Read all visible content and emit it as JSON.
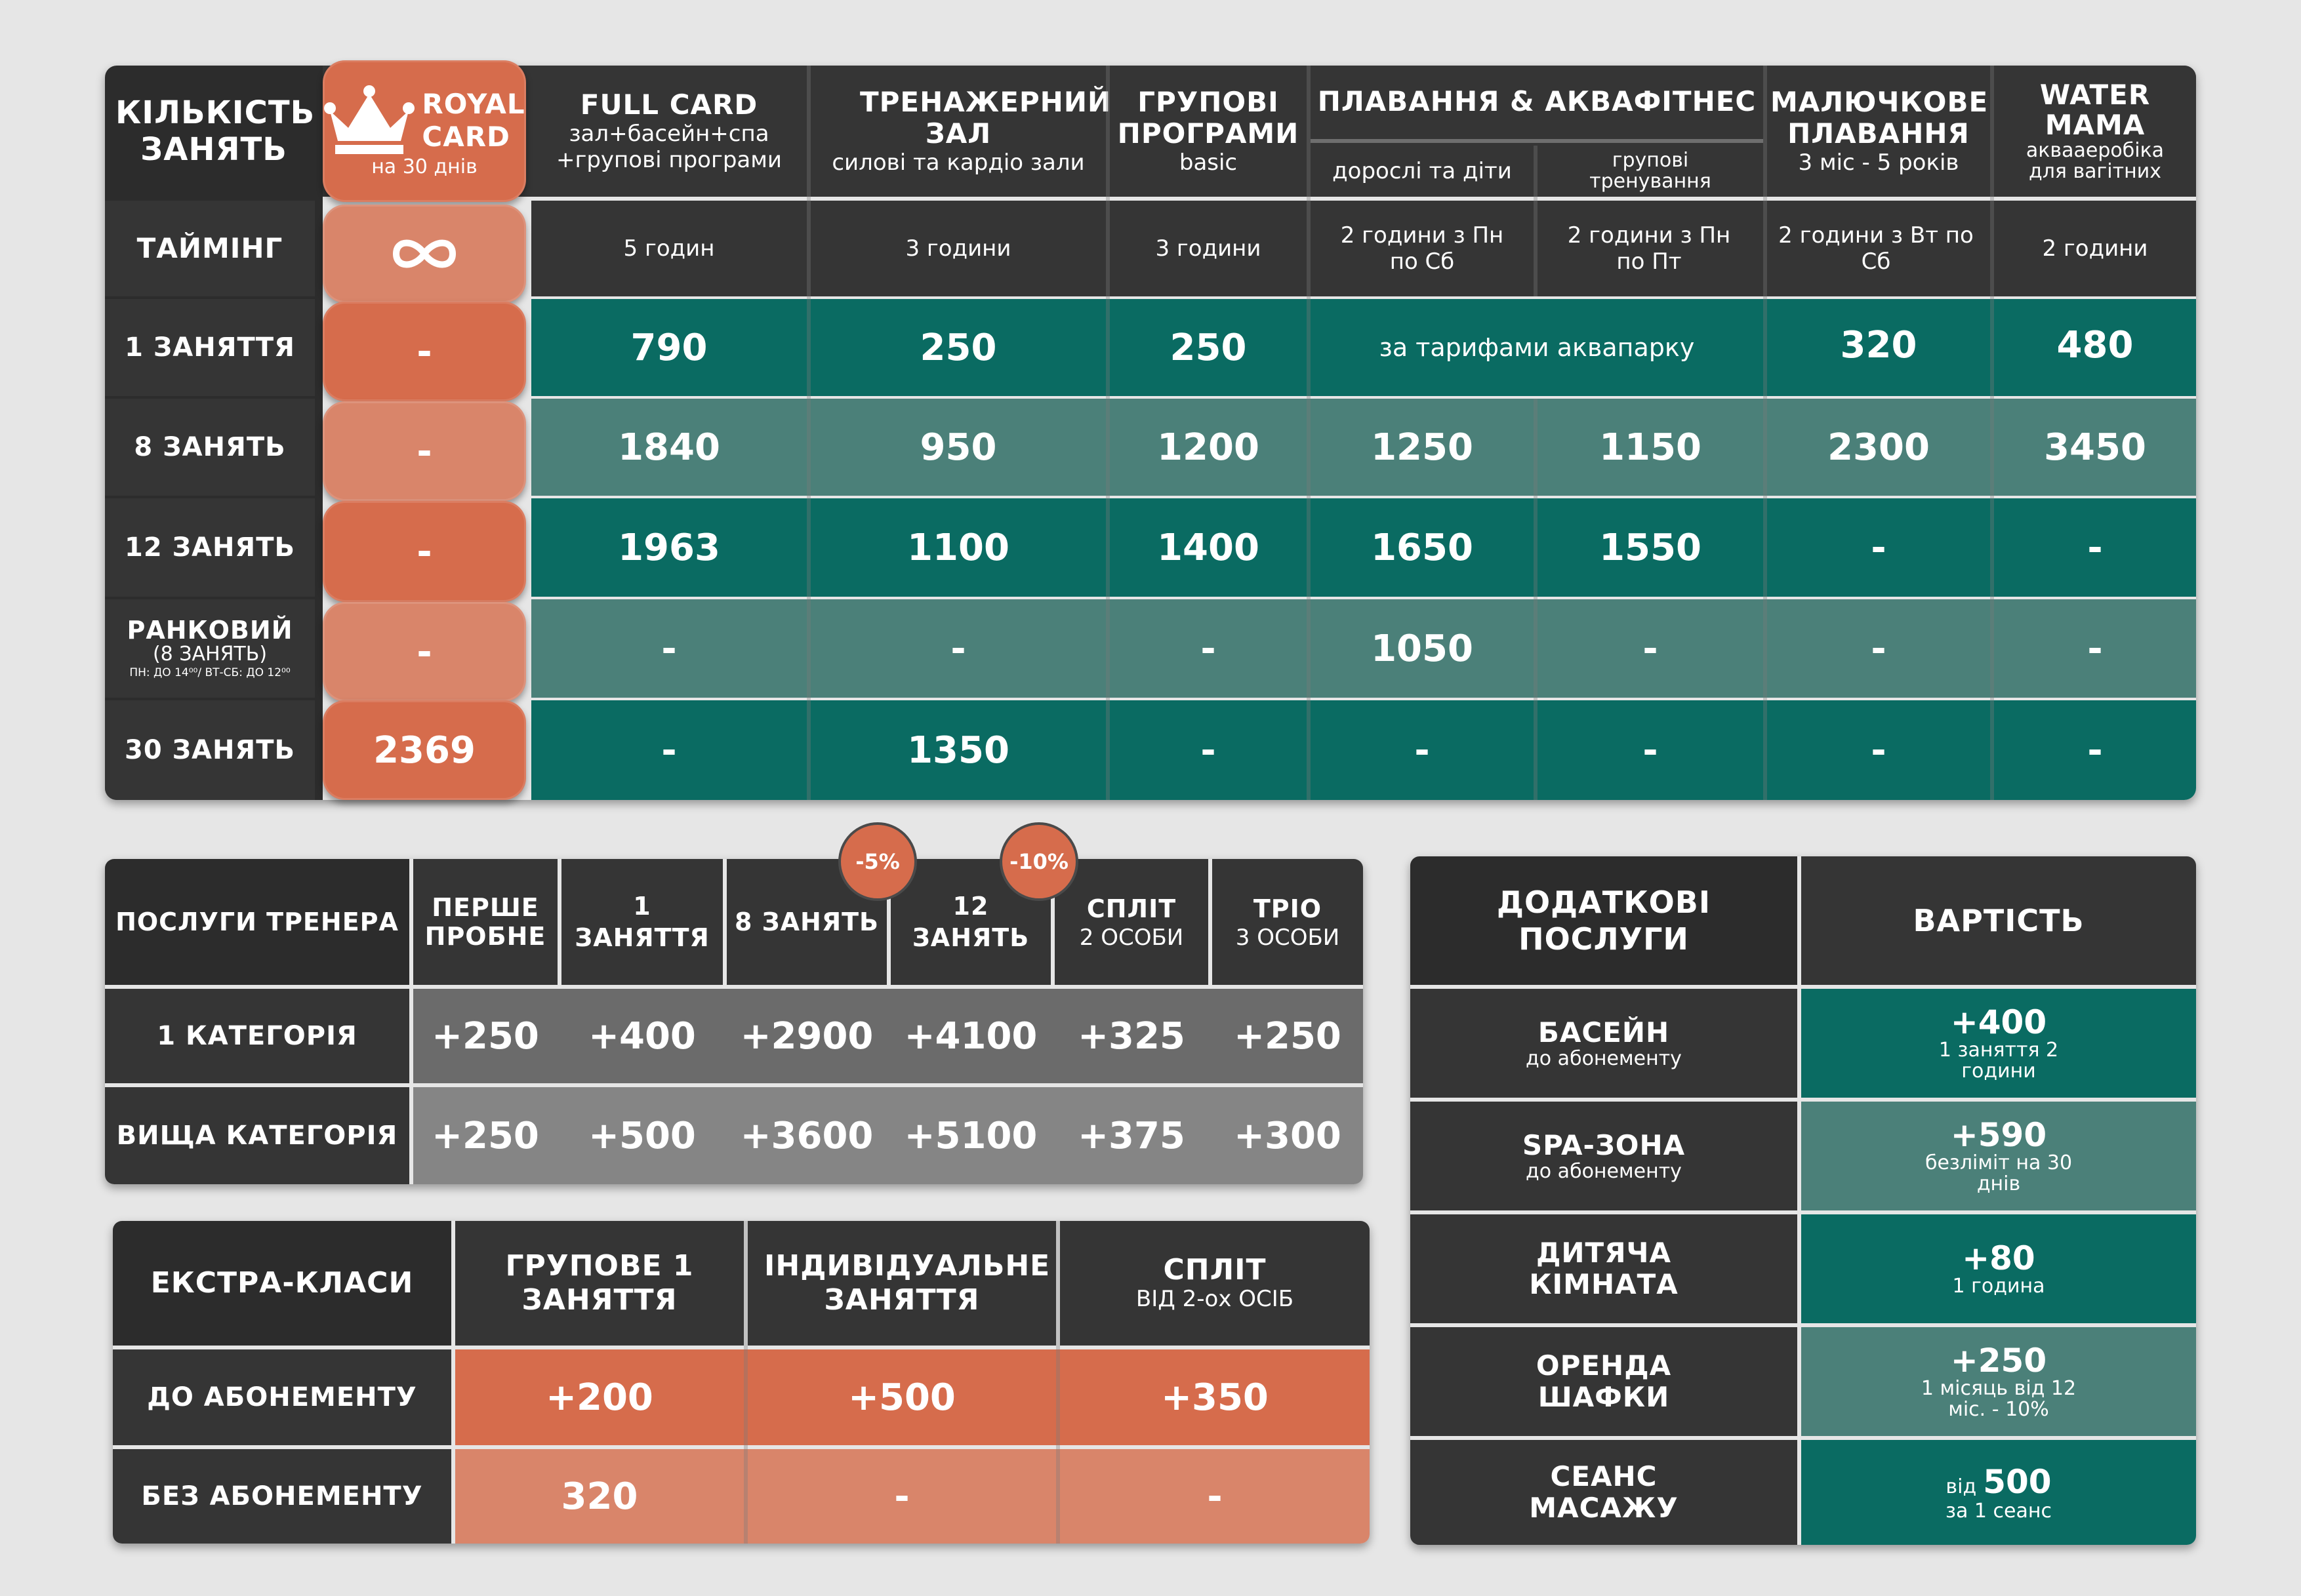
{
  "main": {
    "corner": "КІЛЬКІСТЬ ЗАНЯТЬ",
    "royal": {
      "title_line1": "ROYAL",
      "title_line2": "CARD",
      "subtitle": "на 30 днів"
    },
    "columns": [
      {
        "title": "FULL CARD",
        "sub": "зал+басейн+спа +групові програми"
      },
      {
        "title": "ТРЕНАЖЕРНИЙ ЗАЛ",
        "sub": "силові та кардіо зали"
      },
      {
        "title": "ГРУПОВІ ПРОГРАМИ",
        "sub": "basic"
      },
      {
        "title": "ПЛАВАННЯ & АКВАФІТНЕС",
        "sub_a": "дорослі та діти",
        "sub_b": "групові тренування"
      },
      {
        "title": "МАЛЮЧКОВЕ ПЛАВАННЯ",
        "sub": "3 міс - 5 років"
      },
      {
        "title": "WATER MAMA",
        "sub": "аквааеробіка для вагітних"
      }
    ],
    "timing": {
      "label": "ТАЙМІНГ",
      "royal_icon": "infinity-icon",
      "values": [
        "5 годин",
        "3 години",
        "3 години",
        "2 години з Пн по Сб",
        "2 години з Пн по Пт",
        "2 години з Вт по Сб",
        "2 години"
      ]
    },
    "rows": [
      {
        "label": "1 ЗАНЯТТЯ",
        "royal": "-",
        "values": [
          "790",
          "250",
          "250",
          "320",
          "480"
        ],
        "merged_note": "за тарифами аквапарку"
      },
      {
        "label": "8 ЗАНЯТЬ",
        "royal": "-",
        "values": [
          "1840",
          "950",
          "1200",
          "1250",
          "1150",
          "2300",
          "3450"
        ]
      },
      {
        "label": "12 ЗАНЯТЬ",
        "royal": "-",
        "values": [
          "1963",
          "1100",
          "1400",
          "1650",
          "1550",
          "-",
          "-"
        ]
      },
      {
        "label": "РАНКОВИЙ",
        "label_sub": "(8 ЗАНЯТЬ)",
        "label_note": "ПН: ДО 14⁰⁰/ ВТ-СБ: ДО 12⁰⁰",
        "royal": "-",
        "values": [
          "-",
          "-",
          "-",
          "1050",
          "-",
          "-",
          "-"
        ]
      },
      {
        "label": "30 ЗАНЯТЬ",
        "royal": "2369",
        "values": [
          "-",
          "1350",
          "-",
          "-",
          "-",
          "-",
          "-"
        ]
      }
    ]
  },
  "trainer": {
    "corner": "ПОСЛУГИ ТРЕНЕРА",
    "badges": [
      "-5%",
      "-10%"
    ],
    "headers": [
      {
        "title": "ПЕРШЕ ПРОБНЕ"
      },
      {
        "title": "1 ЗАНЯТТЯ"
      },
      {
        "title": "8 ЗАНЯТЬ"
      },
      {
        "title": "12 ЗАНЯТЬ"
      },
      {
        "title": "СПЛІТ",
        "sub": "2 ОСОБИ"
      },
      {
        "title": "ТРІО",
        "sub": "3 ОСОБИ"
      }
    ],
    "rows": [
      {
        "label": "1 КАТЕГОРІЯ",
        "values": [
          "+250",
          "+400",
          "+2900",
          "+4100",
          "+325",
          "+250"
        ]
      },
      {
        "label": "ВИЩА КАТЕГОРІЯ",
        "values": [
          "+250",
          "+500",
          "+3600",
          "+5100",
          "+375",
          "+300"
        ]
      }
    ]
  },
  "extra": {
    "corner": "ЕКСТРА-КЛАСИ",
    "headers": [
      {
        "title": "ГРУПОВЕ 1 ЗАНЯТТЯ"
      },
      {
        "title": "ІНДИВІДУАЛЬНЕ ЗАНЯТТЯ"
      },
      {
        "title": "СПЛІТ",
        "sub": "ВІД 2-ох ОСІБ"
      }
    ],
    "rows": [
      {
        "label": "ДО АБОНЕМЕНТУ",
        "values": [
          "+200",
          "+500",
          "+350"
        ]
      },
      {
        "label": "БЕЗ АБОНЕМЕНТУ",
        "values": [
          "320",
          "-",
          "-"
        ]
      }
    ]
  },
  "addons": {
    "header_left": "ДОДАТКОВІ ПОСЛУГИ",
    "header_right": "ВАРТІСТЬ",
    "rows": [
      {
        "name": "БАСЕЙН",
        "name_sub": "до абонементу",
        "price": "+400",
        "price_sub": "1 заняття 2 години"
      },
      {
        "name": "SPA-ЗОНА",
        "name_sub": "до абонементу",
        "price": "+590",
        "price_sub": "безліміт на 30 днів"
      },
      {
        "name": "ДИТЯЧА КІМНАТА",
        "name_sub": "",
        "price": "+80",
        "price_sub": "1 година"
      },
      {
        "name": "ОРЕНДА ШАФКИ",
        "name_sub": "",
        "price": "+250",
        "price_sub": "1 місяць від 12 міс. - 10%"
      },
      {
        "name": "СЕАНС МАСАЖУ",
        "name_sub": "",
        "price_prefix": "від",
        "price": "500",
        "price_sub": "за 1 сеанс"
      }
    ]
  },
  "colors": {
    "dark": "#353535",
    "teal": "#0a6b62",
    "teal_light": "#4b8079",
    "orange": "#d66c4c",
    "orange_light": "#d9856a",
    "gray": "#6b6b6b",
    "background": "#e6e6e6"
  }
}
